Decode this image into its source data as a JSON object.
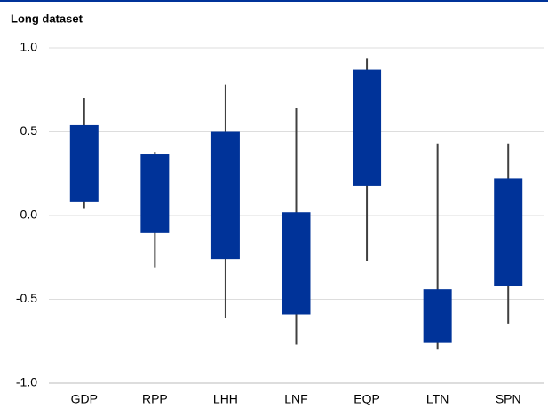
{
  "chart_data": {
    "type": "box",
    "title": "Long dataset",
    "categories": [
      "GDP",
      "RPP",
      "LHH",
      "LNF",
      "EQP",
      "LTN",
      "SPN"
    ],
    "box_low": [
      0.08,
      -0.105,
      -0.26,
      -0.59,
      0.175,
      -0.76,
      -0.42
    ],
    "box_high": [
      0.54,
      0.365,
      0.5,
      0.02,
      0.87,
      -0.44,
      0.22
    ],
    "whisker_low": [
      0.04,
      -0.31,
      -0.61,
      -0.77,
      -0.27,
      -0.8,
      -0.645
    ],
    "whisker_high": [
      0.7,
      0.38,
      0.78,
      0.64,
      0.94,
      0.43,
      0.43
    ],
    "box_color": "#003399",
    "whisker_color": "#404040",
    "ylim": [
      -1,
      1
    ],
    "yticks": [
      {
        "value": -1,
        "label": "-1.0"
      },
      -0.5,
      {
        "value": 0,
        "label": "0.0"
      },
      0.5,
      {
        "value": 1,
        "label": "1.0"
      }
    ],
    "grid": true
  }
}
